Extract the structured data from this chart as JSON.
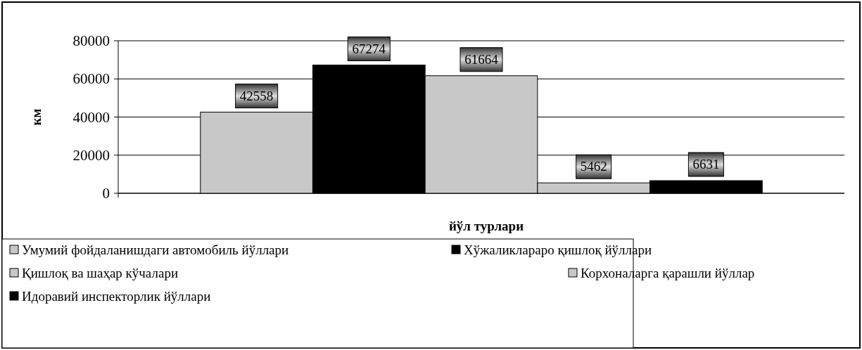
{
  "chart_data": {
    "type": "bar",
    "xlabel": "йўл турлари",
    "ylabel": "км",
    "categories": [
      null
    ],
    "series": [
      {
        "name": "Умумий фойдаланишдаги  автомобиль йўллари",
        "color": "#c8c8c8",
        "values": [
          42558
        ]
      },
      {
        "name": "Хўжаликлараро қишлоқ йўллари",
        "color": "#000000",
        "values": [
          67274
        ]
      },
      {
        "name": "Қишлоқ ва шаҳар кўчалари",
        "color": "#c8c8c8",
        "values": [
          61664
        ]
      },
      {
        "name": "Корхоналарга қарашли йўллар",
        "color": "#c8c8c8",
        "values": [
          5462
        ]
      },
      {
        "name": "Идоравий инспекторлик йўллари",
        "color": "#000000",
        "values": [
          6631
        ]
      }
    ],
    "ylim": [
      0,
      80000
    ],
    "yticks": [
      0,
      20000,
      40000,
      60000,
      80000
    ],
    "grid": "y",
    "legend": "bottom",
    "data_labels": true
  }
}
